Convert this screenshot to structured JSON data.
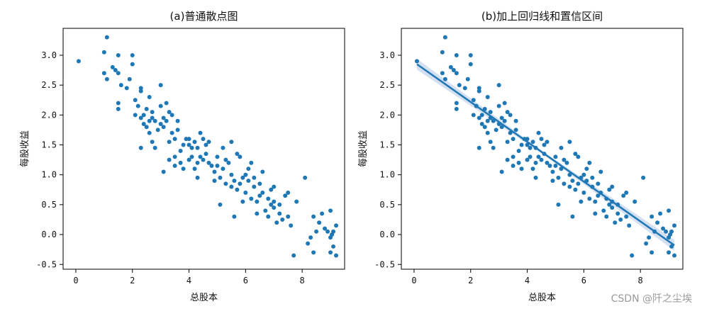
{
  "watermark": "CSDN @阡之尘埃",
  "colors": {
    "points": "#1f77b4",
    "band": "#aec7e8",
    "axis": "#000000"
  },
  "chart_data": [
    {
      "type": "scatter",
      "title": "(a)普通散点图",
      "xlabel": "总股本",
      "ylabel": "每股收益",
      "xlim": [
        -0.45,
        9.5
      ],
      "ylim": [
        -0.58,
        3.45
      ],
      "xticks": [
        0,
        2,
        4,
        6,
        8
      ],
      "yticks": [
        -0.5,
        0.0,
        0.5,
        1.0,
        1.5,
        2.0,
        2.5,
        3.0
      ],
      "ytick_labels": [
        "-0.5",
        "0.0",
        "0.5",
        "1.0",
        "1.5",
        "2.0",
        "2.5",
        "3.0"
      ],
      "grid": false,
      "points": [
        [
          0.1,
          2.9
        ],
        [
          1.0,
          3.05
        ],
        [
          1.1,
          3.3
        ],
        [
          1.0,
          2.7
        ],
        [
          1.1,
          2.6
        ],
        [
          1.3,
          2.8
        ],
        [
          1.4,
          2.75
        ],
        [
          1.5,
          2.7
        ],
        [
          1.5,
          3.0
        ],
        [
          1.5,
          2.2
        ],
        [
          1.5,
          2.1
        ],
        [
          1.6,
          2.5
        ],
        [
          1.8,
          2.45
        ],
        [
          1.9,
          2.6
        ],
        [
          2.0,
          2.85
        ],
        [
          2.0,
          3.0
        ],
        [
          2.1,
          2.25
        ],
        [
          2.2,
          2.15
        ],
        [
          2.3,
          2.45
        ],
        [
          2.3,
          2.4
        ],
        [
          2.3,
          1.95
        ],
        [
          2.4,
          2.0
        ],
        [
          2.4,
          1.85
        ],
        [
          2.5,
          1.8
        ],
        [
          2.5,
          2.1
        ],
        [
          2.6,
          1.9
        ],
        [
          2.6,
          1.7
        ],
        [
          2.7,
          1.95
        ],
        [
          2.7,
          2.05
        ],
        [
          2.8,
          1.9
        ],
        [
          2.9,
          1.75
        ],
        [
          3.0,
          1.85
        ],
        [
          3.0,
          2.5
        ],
        [
          3.0,
          2.15
        ],
        [
          3.1,
          1.95
        ],
        [
          3.1,
          1.8
        ],
        [
          3.2,
          2.2
        ],
        [
          3.2,
          1.9
        ],
        [
          3.3,
          2.05
        ],
        [
          3.3,
          1.55
        ],
        [
          3.4,
          1.7
        ],
        [
          3.4,
          2.0
        ],
        [
          3.5,
          1.6
        ],
        [
          3.5,
          1.3
        ],
        [
          3.6,
          1.75
        ],
        [
          3.7,
          1.4
        ],
        [
          3.8,
          1.5
        ],
        [
          3.9,
          1.6
        ],
        [
          4.0,
          1.5
        ],
        [
          4.0,
          1.25
        ],
        [
          4.1,
          1.45
        ],
        [
          4.1,
          1.3
        ],
        [
          4.2,
          1.1
        ],
        [
          4.3,
          1.2
        ],
        [
          4.3,
          1.45
        ],
        [
          4.4,
          1.3
        ],
        [
          4.4,
          1.7
        ],
        [
          4.5,
          1.25
        ],
        [
          4.6,
          1.35
        ],
        [
          4.6,
          1.5
        ],
        [
          4.7,
          1.2
        ],
        [
          4.8,
          1.15
        ],
        [
          4.9,
          1.05
        ],
        [
          5.0,
          1.3
        ],
        [
          5.0,
          1.15
        ],
        [
          5.1,
          0.95
        ],
        [
          5.2,
          1.1
        ],
        [
          5.3,
          0.85
        ],
        [
          5.3,
          1.25
        ],
        [
          5.4,
          1.2
        ],
        [
          5.5,
          1.0
        ],
        [
          5.5,
          0.8
        ],
        [
          5.6,
          0.9
        ],
        [
          5.7,
          0.75
        ],
        [
          5.8,
          1.3
        ],
        [
          5.8,
          0.85
        ],
        [
          5.9,
          0.95
        ],
        [
          6.0,
          1.0
        ],
        [
          6.0,
          0.7
        ],
        [
          6.1,
          0.9
        ],
        [
          6.1,
          1.1
        ],
        [
          6.2,
          0.6
        ],
        [
          6.3,
          0.8
        ],
        [
          6.3,
          0.95
        ],
        [
          6.4,
          0.55
        ],
        [
          6.5,
          0.85
        ],
        [
          6.5,
          0.65
        ],
        [
          6.6,
          0.7
        ],
        [
          6.7,
          0.4
        ],
        [
          6.8,
          0.6
        ],
        [
          6.9,
          0.5
        ],
        [
          7.0,
          0.8
        ],
        [
          7.0,
          0.45
        ],
        [
          7.1,
          0.2
        ],
        [
          7.2,
          0.35
        ],
        [
          7.3,
          0.25
        ],
        [
          7.4,
          0.65
        ],
        [
          7.5,
          0.3
        ],
        [
          7.6,
          0.15
        ],
        [
          7.7,
          -0.35
        ],
        [
          8.2,
          -0.15
        ],
        [
          8.3,
          -0.05
        ],
        [
          8.4,
          0.3
        ],
        [
          8.5,
          0.05
        ],
        [
          8.6,
          0.2
        ],
        [
          8.7,
          0.35
        ],
        [
          8.8,
          0.1
        ],
        [
          8.9,
          0.05
        ],
        [
          9.0,
          -0.05
        ],
        [
          9.0,
          0.4
        ],
        [
          9.0,
          -0.3
        ],
        [
          9.05,
          0.0
        ],
        [
          9.1,
          -0.2
        ],
        [
          9.1,
          0.05
        ],
        [
          9.2,
          -0.35
        ],
        [
          9.2,
          0.15
        ],
        [
          2.3,
          1.45
        ],
        [
          2.7,
          1.55
        ],
        [
          3.1,
          1.05
        ],
        [
          3.3,
          1.25
        ],
        [
          3.5,
          1.15
        ],
        [
          3.8,
          1.1
        ],
        [
          4.0,
          1.6
        ],
        [
          4.2,
          1.55
        ],
        [
          4.5,
          1.6
        ],
        [
          4.7,
          1.55
        ],
        [
          5.2,
          1.45
        ],
        [
          5.5,
          1.55
        ],
        [
          5.7,
          1.35
        ],
        [
          5.9,
          0.55
        ],
        [
          6.2,
          1.2
        ],
        [
          6.6,
          1.05
        ],
        [
          6.9,
          0.75
        ],
        [
          7.2,
          0.5
        ],
        [
          7.5,
          0.7
        ],
        [
          7.8,
          0.55
        ],
        [
          8.1,
          0.95
        ],
        [
          8.4,
          -0.3
        ],
        [
          2.8,
          1.45
        ],
        [
          3.6,
          1.9
        ],
        [
          4.9,
          0.9
        ],
        [
          5.1,
          0.5
        ],
        [
          6.4,
          0.35
        ],
        [
          7.0,
          0.55
        ],
        [
          3.7,
          1.2
        ],
        [
          4.3,
          0.95
        ],
        [
          5.6,
          0.3
        ],
        [
          6.8,
          0.3
        ],
        [
          2.1,
          2.0
        ],
        [
          2.6,
          2.3
        ]
      ]
    },
    {
      "type": "scatter",
      "title": "(b)加上回归线和置信区间",
      "xlabel": "总股本",
      "ylabel": "每股收益",
      "xlim": [
        -0.45,
        9.5
      ],
      "ylim": [
        -0.58,
        3.45
      ],
      "xticks": [
        0,
        2,
        4,
        6,
        8
      ],
      "yticks": [
        -0.5,
        0.0,
        0.5,
        1.0,
        1.5,
        2.0,
        2.5,
        3.0
      ],
      "ytick_labels": [
        "-0.5",
        "0.0",
        "0.5",
        "1.0",
        "1.5",
        "2.0",
        "2.5",
        "3.0"
      ],
      "grid": false,
      "regression": {
        "x": [
          0.1,
          9.2
        ],
        "y": [
          2.85,
          -0.18
        ],
        "ci_halfwidth": [
          0.09,
          0.09
        ],
        "ci_center_halfwidth": 0.025
      },
      "points_same_as": 0
    }
  ]
}
